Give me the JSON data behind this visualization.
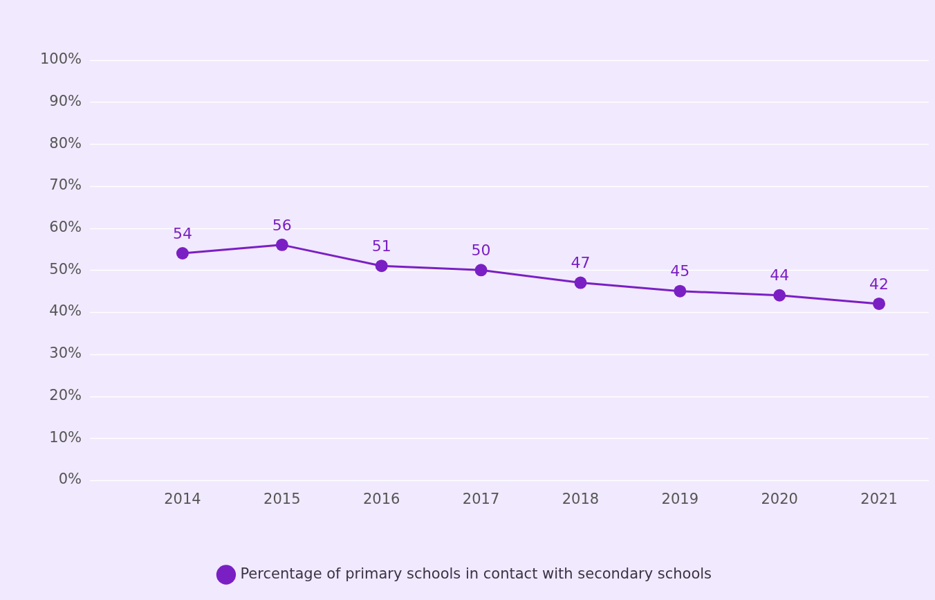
{
  "chart_data": {
    "type": "line",
    "categories": [
      "2014",
      "2015",
      "2016",
      "2017",
      "2018",
      "2019",
      "2020",
      "2021"
    ],
    "series": [
      {
        "name": "Percentage of primary schools in contact with secondary schools",
        "color": "#7a1fc4",
        "values": [
          54,
          56,
          51,
          50,
          47,
          45,
          44,
          42
        ]
      }
    ],
    "ylim": [
      0,
      100
    ],
    "yticks": [
      {
        "value": 0,
        "label": "0%"
      },
      {
        "value": 10,
        "label": "10%"
      },
      {
        "value": 20,
        "label": "20%"
      },
      {
        "value": 30,
        "label": "30%"
      },
      {
        "value": 40,
        "label": "40%"
      },
      {
        "value": 50,
        "label": "50%"
      },
      {
        "value": 60,
        "label": "60%"
      },
      {
        "value": 70,
        "label": "70%"
      },
      {
        "value": 80,
        "label": "80%"
      },
      {
        "value": 90,
        "label": "90%"
      },
      {
        "value": 100,
        "label": "100%"
      }
    ],
    "grid": "y",
    "legend": "bottom",
    "marker": "circle",
    "line_style": "solid",
    "data_labels": true
  }
}
